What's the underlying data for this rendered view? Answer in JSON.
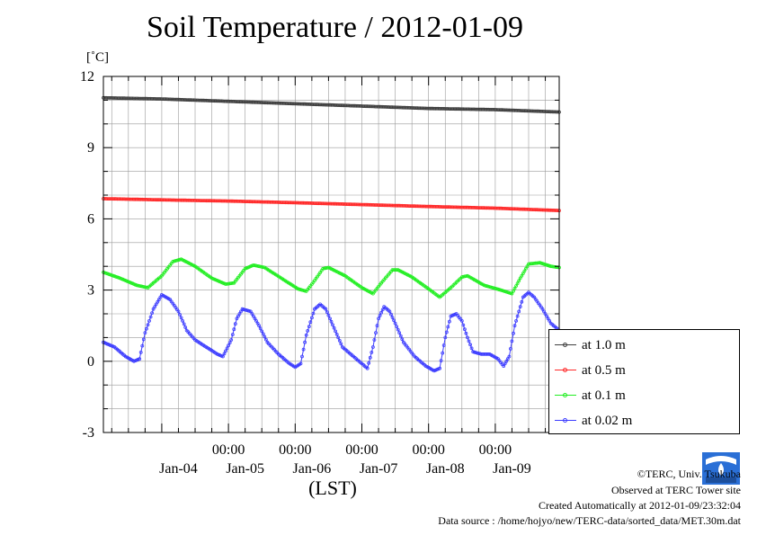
{
  "title": "Soil Temperature / 2012-01-09",
  "unit": "[˚C]",
  "xaxis_title": "(LST)",
  "legend": [
    {
      "label": "at 1.0 m",
      "color": "#404040"
    },
    {
      "label": "at 0.5 m",
      "color": "#ff2a2a"
    },
    {
      "label": "at 0.1 m",
      "color": "#22ee22"
    },
    {
      "label": "at 0.02 m",
      "color": "#3c3cff"
    }
  ],
  "credits": {
    "copyright": "©TERC, Univ. Tsukuba",
    "observed": "Observed at TERC Tower site",
    "created": "Created Automatically at 2012-01-09/23:32:04",
    "source": "Data source : /home/hojyo/new/TERC-data/sorted_data/MET.30m.dat"
  },
  "chart_data": {
    "type": "line",
    "title": "Soil Temperature / 2012-01-09",
    "ylabel": "[˚C]",
    "xlabel": "(LST)",
    "ylim": [
      -3,
      12
    ],
    "yticks": [
      -3,
      0,
      3,
      6,
      9,
      12
    ],
    "xlim_hours_from_jan04_00": [
      -21,
      143
    ],
    "x_tick_labels": [
      "00:00",
      "00:00",
      "00:00",
      "00:00",
      "00:00"
    ],
    "x_tick_hours": [
      24,
      48,
      72,
      96,
      120
    ],
    "date_labels": [
      "Jan-04",
      "Jan-05",
      "Jan-06",
      "Jan-07",
      "Jan-08",
      "Jan-09"
    ],
    "date_label_hours": [
      0,
      24,
      48,
      72,
      96,
      120
    ],
    "grid": true,
    "legend_position": "right",
    "x_unit": "hours",
    "series": [
      {
        "name": "at 1.0 m",
        "color": "#404040",
        "points": [
          [
            -21,
            11.1
          ],
          [
            0,
            11.05
          ],
          [
            24,
            10.95
          ],
          [
            48,
            10.85
          ],
          [
            72,
            10.75
          ],
          [
            96,
            10.65
          ],
          [
            120,
            10.6
          ],
          [
            143,
            10.5
          ]
        ]
      },
      {
        "name": "at 0.5 m",
        "color": "#ff2a2a",
        "points": [
          [
            -21,
            6.85
          ],
          [
            0,
            6.8
          ],
          [
            24,
            6.75
          ],
          [
            48,
            6.68
          ],
          [
            72,
            6.6
          ],
          [
            96,
            6.52
          ],
          [
            120,
            6.45
          ],
          [
            143,
            6.35
          ]
        ]
      },
      {
        "name": "at 0.1 m",
        "color": "#22ee22",
        "points": [
          [
            -21,
            3.75
          ],
          [
            -15,
            3.5
          ],
          [
            -9,
            3.2
          ],
          [
            -5,
            3.1
          ],
          [
            0,
            3.6
          ],
          [
            4,
            4.2
          ],
          [
            7,
            4.3
          ],
          [
            12,
            4.0
          ],
          [
            18,
            3.5
          ],
          [
            23,
            3.25
          ],
          [
            26,
            3.3
          ],
          [
            30,
            3.9
          ],
          [
            33,
            4.05
          ],
          [
            37,
            3.95
          ],
          [
            43,
            3.5
          ],
          [
            49,
            3.05
          ],
          [
            52,
            2.95
          ],
          [
            55,
            3.4
          ],
          [
            58,
            3.9
          ],
          [
            60,
            3.95
          ],
          [
            66,
            3.6
          ],
          [
            72,
            3.1
          ],
          [
            76,
            2.85
          ],
          [
            79,
            3.3
          ],
          [
            83,
            3.85
          ],
          [
            85,
            3.85
          ],
          [
            90,
            3.55
          ],
          [
            96,
            3.05
          ],
          [
            100,
            2.7
          ],
          [
            104,
            3.1
          ],
          [
            108,
            3.55
          ],
          [
            110,
            3.6
          ],
          [
            116,
            3.2
          ],
          [
            122,
            3.0
          ],
          [
            126,
            2.85
          ],
          [
            129,
            3.5
          ],
          [
            132,
            4.1
          ],
          [
            136,
            4.15
          ],
          [
            140,
            4.0
          ],
          [
            143,
            3.95
          ]
        ]
      },
      {
        "name": "at 0.02 m",
        "color": "#3c3cff",
        "points": [
          [
            -21,
            0.8
          ],
          [
            -17,
            0.6
          ],
          [
            -13,
            0.2
          ],
          [
            -10,
            0.0
          ],
          [
            -8,
            0.1
          ],
          [
            -6,
            1.2
          ],
          [
            -3,
            2.2
          ],
          [
            0,
            2.8
          ],
          [
            3,
            2.6
          ],
          [
            6,
            2.1
          ],
          [
            9,
            1.3
          ],
          [
            12,
            0.9
          ],
          [
            16,
            0.6
          ],
          [
            20,
            0.3
          ],
          [
            22,
            0.2
          ],
          [
            25,
            0.9
          ],
          [
            27,
            1.8
          ],
          [
            29,
            2.2
          ],
          [
            32,
            2.1
          ],
          [
            35,
            1.5
          ],
          [
            38,
            0.8
          ],
          [
            42,
            0.3
          ],
          [
            46,
            -0.1
          ],
          [
            48,
            -0.25
          ],
          [
            50,
            -0.1
          ],
          [
            52,
            1.1
          ],
          [
            55,
            2.2
          ],
          [
            57,
            2.4
          ],
          [
            59,
            2.2
          ],
          [
            62,
            1.4
          ],
          [
            65,
            0.6
          ],
          [
            69,
            0.2
          ],
          [
            72,
            -0.1
          ],
          [
            74,
            -0.3
          ],
          [
            76,
            0.6
          ],
          [
            78,
            1.8
          ],
          [
            80,
            2.3
          ],
          [
            82,
            2.1
          ],
          [
            84,
            1.6
          ],
          [
            87,
            0.8
          ],
          [
            91,
            0.2
          ],
          [
            95,
            -0.2
          ],
          [
            98,
            -0.4
          ],
          [
            100,
            -0.3
          ],
          [
            102,
            1.0
          ],
          [
            104,
            1.9
          ],
          [
            106,
            2.0
          ],
          [
            108,
            1.7
          ],
          [
            110,
            1.0
          ],
          [
            112,
            0.4
          ],
          [
            115,
            0.3
          ],
          [
            118,
            0.3
          ],
          [
            121,
            0.1
          ],
          [
            123,
            -0.2
          ],
          [
            125,
            0.2
          ],
          [
            127,
            1.5
          ],
          [
            130,
            2.7
          ],
          [
            132,
            2.9
          ],
          [
            134,
            2.7
          ],
          [
            137,
            2.2
          ],
          [
            140,
            1.6
          ],
          [
            143,
            1.3
          ]
        ]
      }
    ]
  }
}
